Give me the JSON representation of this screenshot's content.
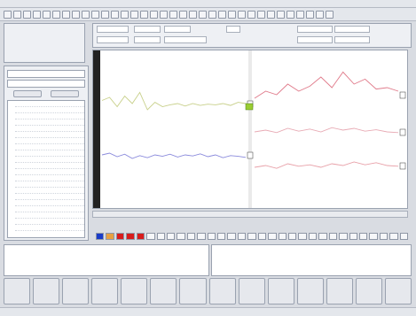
{
  "window": {
    "title": ""
  },
  "menu": [],
  "toolbar": {
    "button_count": 34
  },
  "logo": {
    "text": ""
  },
  "controls": {
    "dropdowns": [
      "",
      ""
    ],
    "buttons": [
      "",
      ""
    ],
    "tree_items": []
  },
  "info_panel": {
    "fields": []
  },
  "plot": {
    "marker_label": "",
    "channels": [
      {
        "color": "#c8d08a",
        "values": [
          0.55,
          0.6,
          0.45,
          0.62,
          0.5,
          0.68,
          0.4,
          0.52,
          0.45,
          0.48,
          0.5,
          0.46,
          0.5,
          0.47,
          0.49,
          0.48,
          0.5,
          0.47,
          0.52,
          0.5
        ]
      },
      {
        "color": "#8a8adc",
        "values": [
          0.5,
          0.55,
          0.45,
          0.52,
          0.4,
          0.48,
          0.42,
          0.5,
          0.46,
          0.52,
          0.44,
          0.5,
          0.47,
          0.53,
          0.45,
          0.5,
          0.42,
          0.48,
          0.46,
          0.43
        ]
      },
      {
        "color": "#e07a8a",
        "values": [
          0.45,
          0.55,
          0.5,
          0.65,
          0.55,
          0.62,
          0.75,
          0.6,
          0.82,
          0.65,
          0.72,
          0.58,
          0.6,
          0.55
        ]
      },
      {
        "color": "#e8aab4",
        "values": [
          0.5,
          0.55,
          0.48,
          0.6,
          0.52,
          0.58,
          0.5,
          0.62,
          0.55,
          0.6,
          0.52,
          0.56,
          0.5,
          0.48
        ]
      },
      {
        "color": "#e8a0a8",
        "values": [
          0.45,
          0.5,
          0.42,
          0.55,
          0.48,
          0.52,
          0.45,
          0.55,
          0.5,
          0.6,
          0.52,
          0.58,
          0.5,
          0.48
        ]
      }
    ]
  },
  "statusbar": {
    "text": ""
  },
  "playbar": {
    "swatches": [
      "#1a3cc8",
      "#e8a040",
      "#d81c1c",
      "#d81c1c",
      "#d81c1c"
    ],
    "button_count": 26
  },
  "log": {
    "lines": []
  },
  "buttons": [
    {
      "label": ""
    },
    {
      "label": ""
    },
    {
      "label": ""
    },
    {
      "label": ""
    },
    {
      "label": ""
    },
    {
      "label": ""
    },
    {
      "label": ""
    },
    {
      "label": ""
    },
    {
      "label": ""
    },
    {
      "label": ""
    },
    {
      "label": ""
    },
    {
      "label": ""
    },
    {
      "label": ""
    },
    {
      "label": ""
    }
  ],
  "bottombar": {
    "text": ""
  }
}
